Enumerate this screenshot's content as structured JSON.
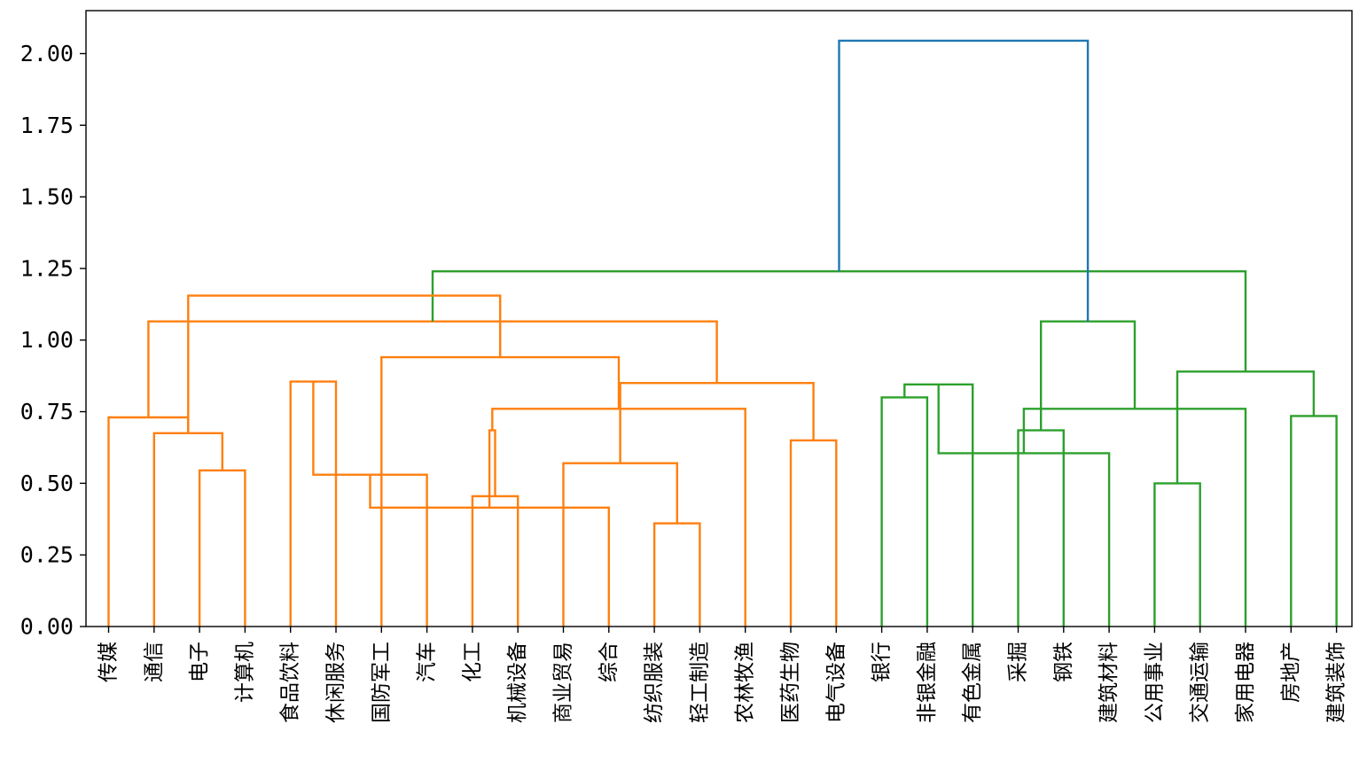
{
  "chart_data": {
    "type": "dendrogram",
    "title": "",
    "xlabel": "",
    "ylabel": "",
    "ylim": [
      0,
      2.15
    ],
    "yticks": [
      0.0,
      0.25,
      0.5,
      0.75,
      1.0,
      1.25,
      1.5,
      1.75,
      2.0
    ],
    "ytick_labels": [
      "0.00",
      "0.25",
      "0.50",
      "0.75",
      "1.00",
      "1.25",
      "1.50",
      "1.75",
      "2.00"
    ],
    "grid": false,
    "leaves": [
      "传媒",
      "通信",
      "电子",
      "计算机",
      "食品饮料",
      "休闲服务",
      "国防军工",
      "汽车",
      "化工",
      "机械设备",
      "商业贸易",
      "综合",
      "纺织服装",
      "轻工制造",
      "农林牧渔",
      "医药生物",
      "电气设备",
      "银行",
      "非银金融",
      "有色金属",
      "采掘",
      "钢铁",
      "建筑材料",
      "公用事业",
      "交通运输",
      "家用电器",
      "房地产",
      "建筑装饰"
    ],
    "colors": {
      "cluster_1": "#ff7f0e",
      "cluster_2": "#2ca02c",
      "above_threshold": "#1f77b4"
    },
    "links": [
      {
        "a": 2,
        "b": 3,
        "height": 0.545,
        "color": "cluster_1"
      },
      {
        "a": 1,
        "b": 28,
        "height": 0.675,
        "color": "cluster_1"
      },
      {
        "a": 0,
        "b": 29,
        "height": 0.73,
        "color": "cluster_1"
      },
      {
        "a": 4,
        "b": 5,
        "height": 0.855,
        "color": "cluster_1"
      },
      {
        "a": 8,
        "b": 9,
        "height": 0.455,
        "color": "cluster_1"
      },
      {
        "a": 7,
        "b": 31,
        "height": 0.53,
        "color": "cluster_1"
      },
      {
        "a": 12,
        "b": 13,
        "height": 0.36,
        "color": "cluster_1"
      },
      {
        "a": 11,
        "b": 33,
        "height": 0.415,
        "color": "cluster_1"
      },
      {
        "a": 10,
        "b": 34,
        "height": 0.57,
        "color": "cluster_1"
      },
      {
        "a": 32,
        "b": 35,
        "height": 0.685,
        "color": "cluster_1"
      },
      {
        "a": 15,
        "b": 16,
        "height": 0.65,
        "color": "cluster_1"
      },
      {
        "a": 14,
        "b": 37,
        "height": 0.76,
        "color": "cluster_1"
      },
      {
        "a": 36,
        "b": 38,
        "height": 0.85,
        "color": "cluster_1"
      },
      {
        "a": 6,
        "b": 39,
        "height": 0.94,
        "color": "cluster_1"
      },
      {
        "a": 30,
        "b": 40,
        "height": 1.065,
        "color": "cluster_1"
      },
      {
        "a": 17,
        "b": 18,
        "height": 0.8,
        "color": "cluster_2"
      },
      {
        "a": 20,
        "b": 21,
        "height": 0.685,
        "color": "cluster_2"
      },
      {
        "a": 19,
        "b": 43,
        "height": 0.845,
        "color": "cluster_2"
      },
      {
        "a": 23,
        "b": 24,
        "height": 0.5,
        "color": "cluster_2"
      },
      {
        "a": 22,
        "b": 45,
        "height": 0.605,
        "color": "cluster_2"
      },
      {
        "a": 26,
        "b": 27,
        "height": 0.735,
        "color": "cluster_2"
      },
      {
        "a": 25,
        "b": 47,
        "height": 0.76,
        "color": "cluster_2"
      },
      {
        "a": 46,
        "b": 48,
        "height": 0.89,
        "color": "cluster_2"
      },
      {
        "a": 44,
        "b": 49,
        "height": 1.065,
        "color": "cluster_2"
      },
      {
        "a": 42,
        "b": 50,
        "height": 1.24,
        "color": "cluster_2"
      },
      {
        "a": 29,
        "b": 41,
        "height": 1.155,
        "color": "cluster_1"
      },
      {
        "a": 52,
        "b": 51,
        "height": 2.045,
        "color": "above_threshold"
      }
    ]
  }
}
